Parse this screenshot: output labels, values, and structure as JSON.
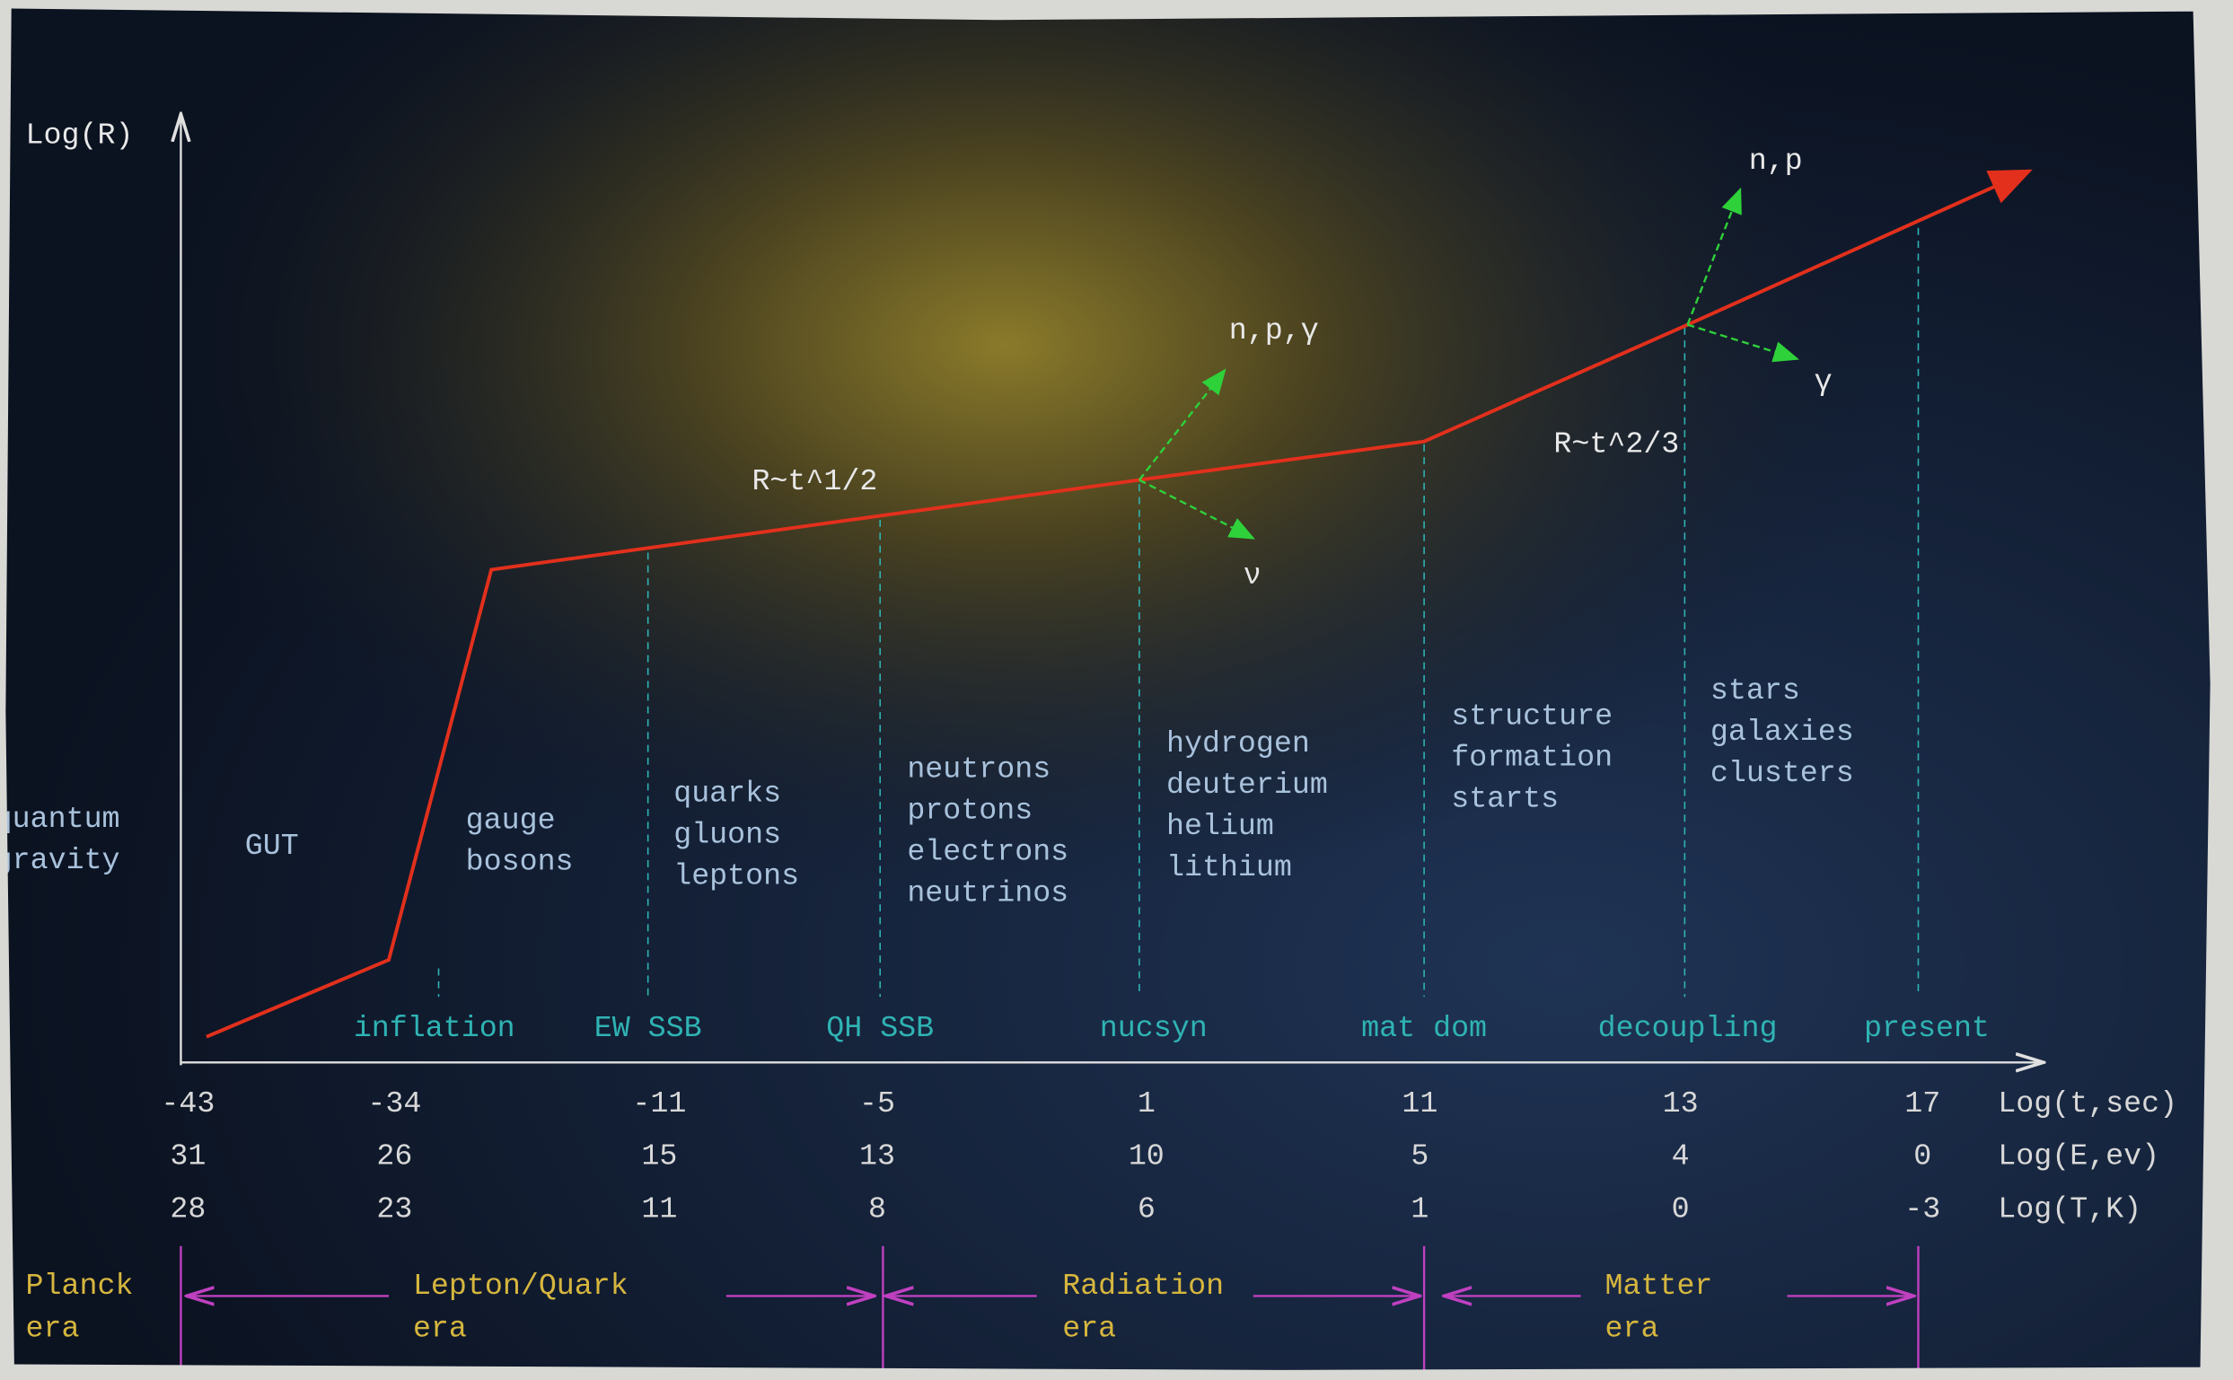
{
  "axes": {
    "y_label": "Log(R)"
  },
  "annotations": [
    {
      "text": "R~t^1/2"
    },
    {
      "text": "R~t^2/3"
    },
    {
      "text": "n,p,γ"
    },
    {
      "text": "ν"
    },
    {
      "text": "n,p"
    },
    {
      "text": "γ"
    }
  ],
  "regions": [
    {
      "lines": [
        "quantum",
        "gravity"
      ]
    },
    {
      "lines": [
        "GUT"
      ]
    },
    {
      "lines": [
        "gauge",
        "bosons"
      ]
    },
    {
      "lines": [
        "quarks",
        "gluons",
        "leptons"
      ]
    },
    {
      "lines": [
        "neutrons",
        "protons",
        "electrons",
        "neutrinos"
      ]
    },
    {
      "lines": [
        "hydrogen",
        "deuterium",
        "helium",
        "lithium"
      ]
    },
    {
      "lines": [
        "structure",
        "formation",
        "starts"
      ]
    },
    {
      "lines": [
        "stars",
        "galaxies",
        "clusters"
      ]
    }
  ],
  "events": [
    "inflation",
    "EW SSB",
    "QH SSB",
    "nucsyn",
    "mat dom",
    "decoupling",
    "present"
  ],
  "scale_rows": [
    {
      "label": "Log(t,sec)",
      "values": [
        "-43",
        "-34",
        "-11",
        "-5",
        "1",
        "11",
        "13",
        "17"
      ]
    },
    {
      "label": "Log(E,ev)",
      "values": [
        "31",
        "26",
        "15",
        "13",
        "10",
        "5",
        "4",
        "0"
      ]
    },
    {
      "label": "Log(T,K)",
      "values": [
        "28",
        "23",
        "11",
        "8",
        "6",
        "1",
        "0",
        "-3"
      ]
    }
  ],
  "eras": [
    {
      "lines": [
        "Planck",
        "era"
      ]
    },
    {
      "lines": [
        "Lepton/Quark",
        "era"
      ]
    },
    {
      "lines": [
        "Radiation",
        "era"
      ]
    },
    {
      "lines": [
        "Matter",
        "era"
      ]
    }
  ]
}
